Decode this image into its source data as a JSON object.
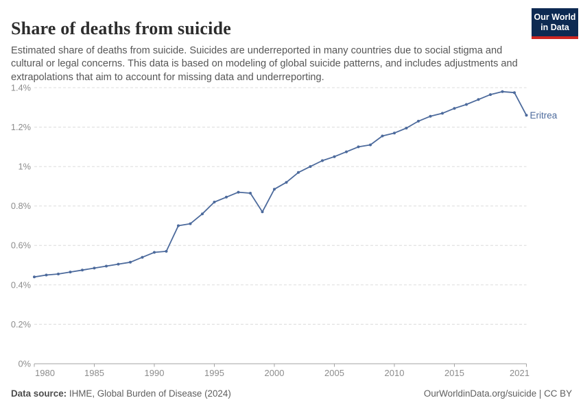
{
  "header": {
    "title": "Share of deaths from suicide",
    "subtitle": "Estimated share of deaths from suicide. Suicides are underreported in many countries due to social stigma and cultural or legal concerns. This data is based on modeling of global suicide patterns, and includes adjustments and extrapolations that aim to account for missing data and underreporting.",
    "logo": {
      "line1": "Our World",
      "line2": "in Data",
      "bg_color": "#0d2a52",
      "accent_color": "#cd2621"
    }
  },
  "chart_data": {
    "type": "line",
    "title": "Share of deaths from suicide",
    "entity": "Eritrea",
    "end_label": "Eritrea",
    "unit": "%",
    "x": [
      1980,
      1981,
      1982,
      1983,
      1984,
      1985,
      1986,
      1987,
      1988,
      1989,
      1990,
      1991,
      1992,
      1993,
      1994,
      1995,
      1996,
      1997,
      1998,
      1999,
      2000,
      2001,
      2002,
      2003,
      2004,
      2005,
      2006,
      2007,
      2008,
      2009,
      2010,
      2011,
      2012,
      2013,
      2014,
      2015,
      2016,
      2017,
      2018,
      2019,
      2020,
      2021
    ],
    "series": [
      {
        "name": "Eritrea",
        "values": [
          0.44,
          0.45,
          0.455,
          0.465,
          0.475,
          0.485,
          0.495,
          0.505,
          0.515,
          0.54,
          0.565,
          0.57,
          0.7,
          0.71,
          0.76,
          0.82,
          0.845,
          0.87,
          0.865,
          0.77,
          0.885,
          0.92,
          0.97,
          1.0,
          1.03,
          1.05,
          1.075,
          1.1,
          1.11,
          1.155,
          1.17,
          1.195,
          1.23,
          1.255,
          1.27,
          1.295,
          1.315,
          1.34,
          1.365,
          1.38,
          1.375,
          1.26
        ]
      }
    ],
    "xlim": [
      1980,
      2021
    ],
    "ylim": [
      0,
      1.4
    ],
    "yticks": [
      0,
      0.2,
      0.4,
      0.6,
      0.8,
      1.0,
      1.2,
      1.4
    ],
    "ytick_labels": [
      "0%",
      "0.2%",
      "0.4%",
      "0.6%",
      "0.8%",
      "1%",
      "1.2%",
      "1.4%"
    ],
    "xticks": [
      1980,
      1985,
      1990,
      1995,
      2000,
      2005,
      2010,
      2015,
      2021
    ],
    "xtick_labels": [
      "1980",
      "1985",
      "1990",
      "1995",
      "2000",
      "2005",
      "2010",
      "2015",
      "2021"
    ],
    "grid": "horizontal-dashed",
    "legend_position": "end-of-line",
    "line_color": "#4C6A9C",
    "grid_color": "#dcdcdc",
    "axis_color": "#a3a3a3",
    "tick_label_color": "#8c8c8c"
  },
  "footer": {
    "source_label": "Data source:",
    "source_text": " IHME, Global Burden of Disease (2024)",
    "attribution": "OurWorldinData.org/suicide | CC BY"
  }
}
